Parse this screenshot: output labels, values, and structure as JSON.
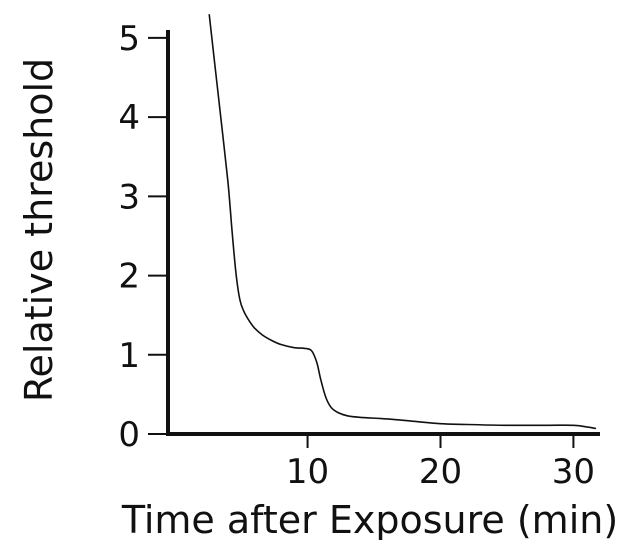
{
  "chart_data": {
    "type": "line",
    "title": "",
    "xlabel": "Time after Exposure (min)",
    "ylabel": "Relative threshold",
    "xlim": [
      -0.5,
      32
    ],
    "ylim": [
      0,
      5.1
    ],
    "xticks": [
      10,
      20,
      30
    ],
    "yticks": [
      0,
      1,
      2,
      3,
      4,
      5
    ],
    "grid": false,
    "legend": "none",
    "line_color": "#111111",
    "series": [
      {
        "x": [
          2.6,
          3.0,
          3.5,
          4.0,
          4.3,
          4.6,
          4.9,
          5.2,
          5.6,
          6.0,
          6.6,
          7.3,
          8.0,
          9.0,
          9.8,
          10.3,
          10.7,
          11.0,
          11.4,
          11.8,
          12.3,
          13.0,
          14.0,
          16.0,
          18.0,
          20.0,
          22.0,
          25.0,
          28.0,
          30.0,
          31.0,
          31.7
        ],
        "y": [
          5.3,
          4.7,
          3.95,
          3.2,
          2.6,
          2.05,
          1.7,
          1.55,
          1.43,
          1.34,
          1.25,
          1.18,
          1.13,
          1.09,
          1.08,
          1.05,
          0.9,
          0.68,
          0.45,
          0.33,
          0.27,
          0.23,
          0.21,
          0.19,
          0.16,
          0.13,
          0.12,
          0.11,
          0.11,
          0.11,
          0.09,
          0.07
        ]
      }
    ]
  }
}
